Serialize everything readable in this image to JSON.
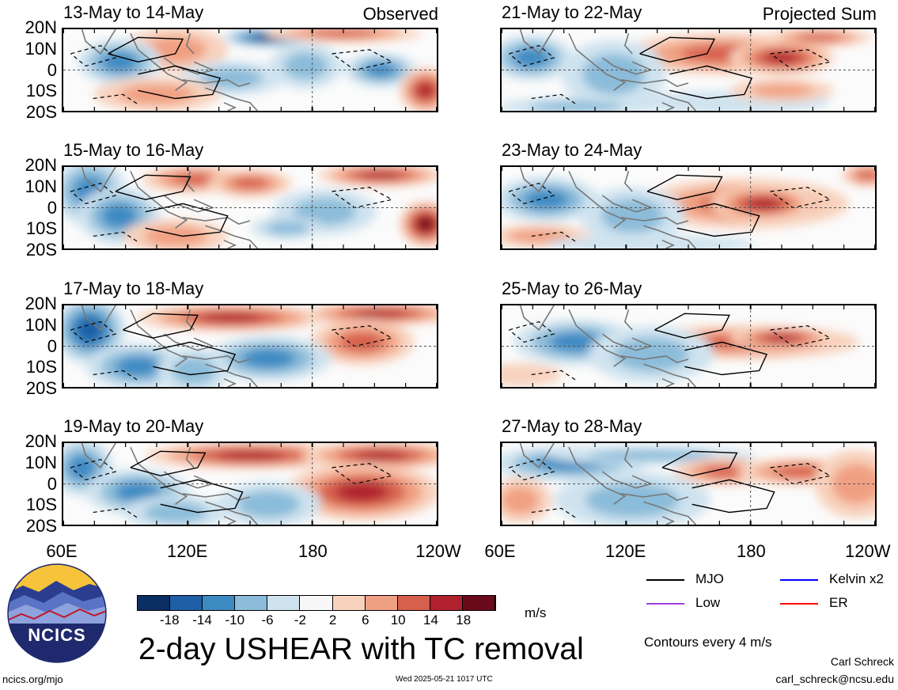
{
  "panels": [
    {
      "date": "13-May to 14-May",
      "tag": "Observed",
      "col": 0,
      "row": 0,
      "blobs": [
        [
          0.55,
          0.1,
          0.09,
          0.08,
          -18
        ],
        [
          0.3,
          0.25,
          0.1,
          0.2,
          8
        ],
        [
          0.75,
          0.05,
          0.15,
          0.08,
          12
        ],
        [
          0.15,
          0.4,
          0.08,
          0.2,
          -10
        ],
        [
          0.85,
          0.5,
          0.07,
          0.15,
          -10
        ],
        [
          0.97,
          0.75,
          0.05,
          0.2,
          16
        ],
        [
          0.45,
          0.6,
          0.1,
          0.15,
          -8
        ],
        [
          0.65,
          0.45,
          0.07,
          0.2,
          -6
        ],
        [
          0.25,
          0.8,
          0.12,
          0.15,
          6
        ]
      ]
    },
    {
      "date": "15-May to 16-May",
      "tag": "",
      "col": 0,
      "row": 1,
      "blobs": [
        [
          0.07,
          0.3,
          0.07,
          0.3,
          -12
        ],
        [
          0.15,
          0.6,
          0.08,
          0.25,
          -10
        ],
        [
          0.35,
          0.15,
          0.1,
          0.12,
          12
        ],
        [
          0.5,
          0.2,
          0.08,
          0.12,
          10
        ],
        [
          0.85,
          0.1,
          0.12,
          0.1,
          16
        ],
        [
          0.97,
          0.7,
          0.05,
          0.2,
          18
        ],
        [
          0.7,
          0.55,
          0.1,
          0.2,
          -8
        ],
        [
          0.3,
          0.85,
          0.1,
          0.15,
          8
        ],
        [
          0.6,
          0.75,
          0.07,
          0.1,
          -8
        ]
      ]
    },
    {
      "date": "17-May to 18-May",
      "tag": "",
      "col": 0,
      "row": 2,
      "blobs": [
        [
          0.07,
          0.3,
          0.07,
          0.3,
          -14
        ],
        [
          0.2,
          0.75,
          0.1,
          0.2,
          -12
        ],
        [
          0.45,
          0.15,
          0.18,
          0.12,
          16
        ],
        [
          0.85,
          0.1,
          0.15,
          0.1,
          16
        ],
        [
          0.8,
          0.45,
          0.1,
          0.2,
          12
        ],
        [
          0.55,
          0.65,
          0.12,
          0.2,
          -10
        ],
        [
          0.35,
          0.8,
          0.07,
          0.2,
          -8
        ]
      ]
    },
    {
      "date": "19-May to 20-May",
      "tag": "",
      "col": 0,
      "row": 3,
      "blobs": [
        [
          0.05,
          0.3,
          0.06,
          0.25,
          -12
        ],
        [
          0.2,
          0.6,
          0.1,
          0.2,
          -10
        ],
        [
          0.5,
          0.15,
          0.2,
          0.12,
          16
        ],
        [
          0.85,
          0.15,
          0.15,
          0.12,
          14
        ],
        [
          0.8,
          0.6,
          0.15,
          0.25,
          14
        ],
        [
          0.55,
          0.75,
          0.1,
          0.2,
          -6
        ],
        [
          0.3,
          0.85,
          0.1,
          0.15,
          -8
        ]
      ]
    },
    {
      "date": "21-May to 22-May",
      "tag": "Projected Sum",
      "col": 1,
      "row": 0,
      "blobs": [
        [
          0.6,
          0.3,
          0.2,
          0.18,
          12
        ],
        [
          0.75,
          0.35,
          0.1,
          0.15,
          16
        ],
        [
          0.85,
          0.1,
          0.1,
          0.08,
          12
        ],
        [
          0.08,
          0.35,
          0.08,
          0.2,
          -10
        ],
        [
          0.3,
          0.55,
          0.1,
          0.3,
          -8
        ],
        [
          0.2,
          0.95,
          0.15,
          0.08,
          -8
        ],
        [
          0.6,
          0.9,
          0.2,
          0.1,
          -4
        ],
        [
          0.75,
          0.75,
          0.1,
          0.1,
          6
        ]
      ]
    },
    {
      "date": "23-May to 24-May",
      "tag": "",
      "col": 1,
      "row": 1,
      "blobs": [
        [
          0.65,
          0.45,
          0.2,
          0.22,
          12
        ],
        [
          0.7,
          0.45,
          0.1,
          0.15,
          16
        ],
        [
          0.98,
          0.1,
          0.05,
          0.1,
          12
        ],
        [
          0.12,
          0.4,
          0.1,
          0.2,
          -10
        ],
        [
          0.35,
          0.6,
          0.1,
          0.25,
          -8
        ],
        [
          0.1,
          0.85,
          0.1,
          0.1,
          6
        ],
        [
          0.4,
          0.95,
          0.2,
          0.08,
          -4
        ]
      ]
    },
    {
      "date": "25-May to 26-May",
      "tag": "",
      "col": 1,
      "row": 2,
      "blobs": [
        [
          0.65,
          0.45,
          0.22,
          0.15,
          10
        ],
        [
          0.75,
          0.4,
          0.1,
          0.1,
          14
        ],
        [
          0.2,
          0.45,
          0.12,
          0.2,
          -10
        ],
        [
          0.4,
          0.6,
          0.12,
          0.25,
          -6
        ],
        [
          0.05,
          0.85,
          0.08,
          0.1,
          4
        ]
      ]
    },
    {
      "date": "27-May to 28-May",
      "tag": "",
      "col": 1,
      "row": 3,
      "blobs": [
        [
          0.18,
          0.25,
          0.15,
          0.15,
          -12
        ],
        [
          0.4,
          0.15,
          0.2,
          0.08,
          -6
        ],
        [
          0.6,
          0.35,
          0.1,
          0.12,
          10
        ],
        [
          0.8,
          0.35,
          0.12,
          0.12,
          10
        ],
        [
          0.95,
          0.5,
          0.08,
          0.3,
          8
        ],
        [
          0.05,
          0.7,
          0.06,
          0.2,
          6
        ],
        [
          0.35,
          0.7,
          0.15,
          0.25,
          -6
        ]
      ]
    }
  ],
  "lat_labels": [
    "20N",
    "10N",
    "0",
    "10S",
    "20S"
  ],
  "lon_labels": [
    "60E",
    "120E",
    "180",
    "120W"
  ],
  "colorbar": {
    "levels": [
      "-18",
      "-14",
      "-10",
      "-6",
      "-2",
      "2",
      "6",
      "10",
      "14",
      "18"
    ],
    "colors": [
      "#0b2f63",
      "#1e5fa6",
      "#3d8ac3",
      "#8bbcd9",
      "#cfe3ef",
      "#f7f7f7",
      "#f8d2bd",
      "#f0a082",
      "#d6604d",
      "#b0202d",
      "#6b0a1a"
    ],
    "units": "m/s"
  },
  "title": "2-day USHEAR with TC removal",
  "legend": [
    {
      "label": "MJO",
      "color": "#000000"
    },
    {
      "label": "Kelvin x2",
      "color": "#0000ff"
    },
    {
      "label": "Low",
      "color": "#a040e0"
    },
    {
      "label": "ER",
      "color": "#ff0000"
    }
  ],
  "contour_note": "Contours every 4 m/s",
  "logo_text": "NCICS",
  "footer": {
    "left": "ncics.org/mjo",
    "center": "Wed 2025-05-21 1017 UTC",
    "author": "Carl Schreck",
    "email": "carl_schreck@ncsu.edu"
  }
}
